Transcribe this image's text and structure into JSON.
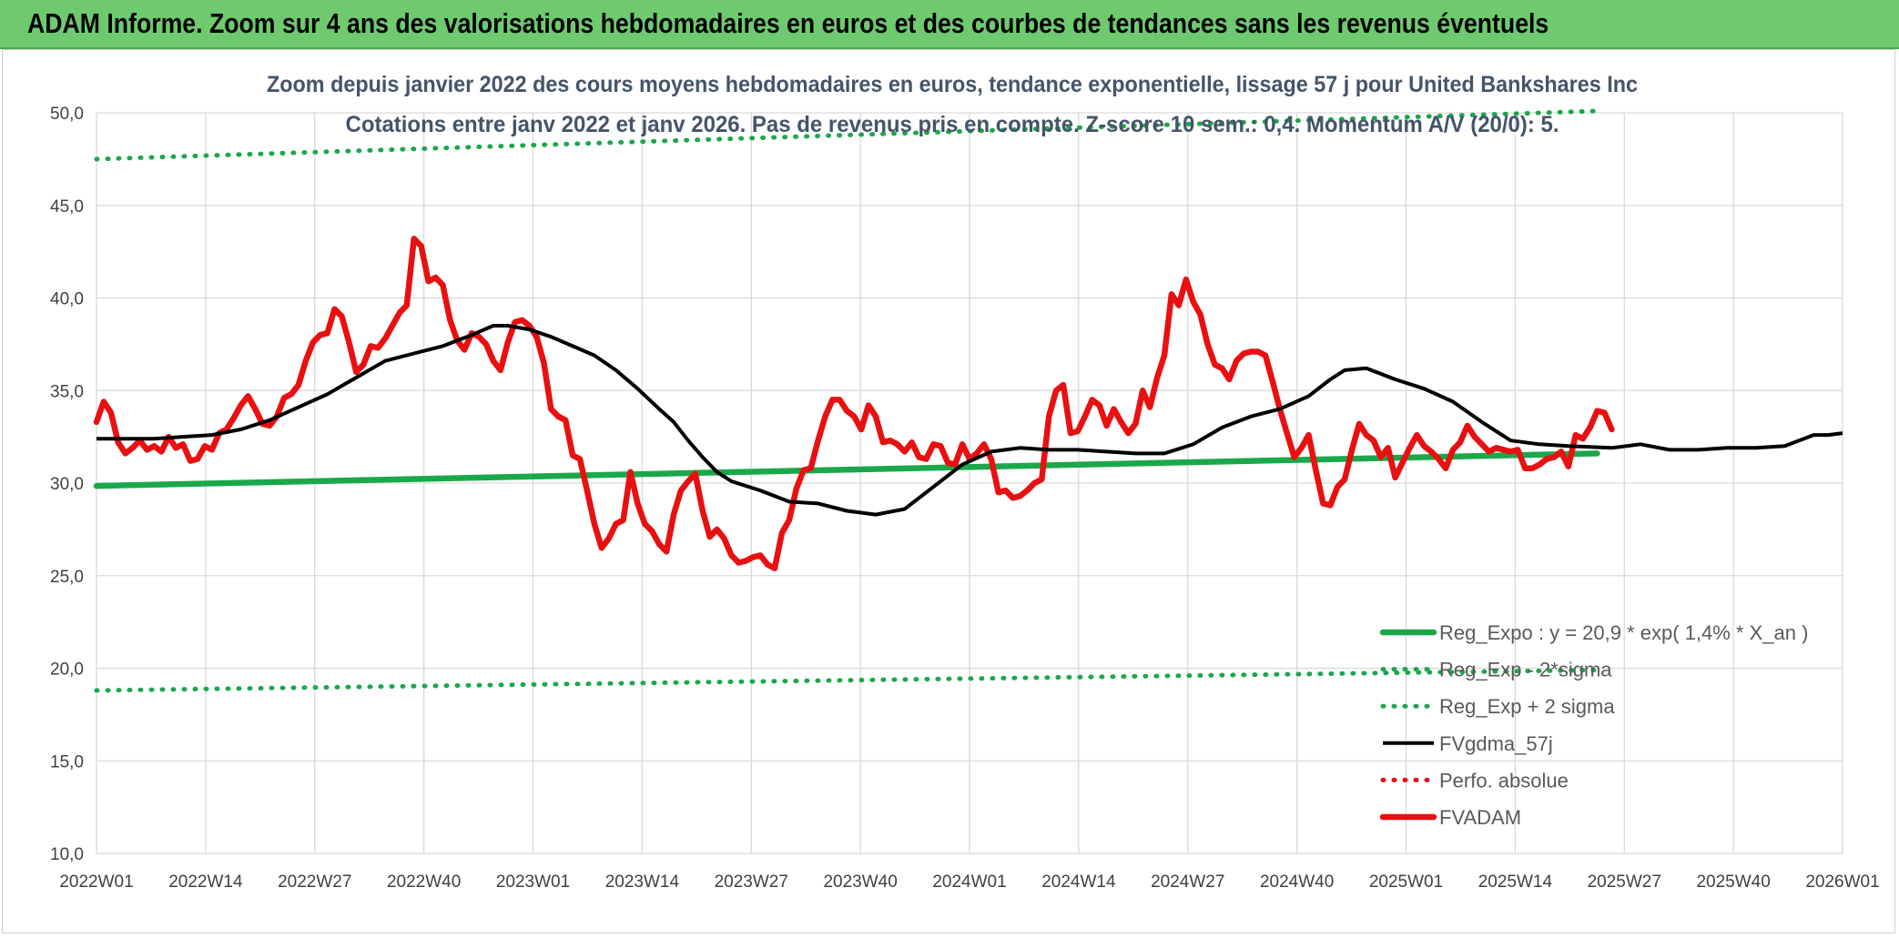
{
  "header": {
    "title": "ADAM Informe. Zoom sur 4 ans des valorisations hebdomadaires en euros et des courbes de tendances sans les revenus éventuels"
  },
  "colors": {
    "banner": "#6fca6f",
    "reg": "#1aa84a",
    "fvadam": "#e81010",
    "fvgdma": "#000000",
    "perfo": "#e81010",
    "title": "#44546a"
  },
  "chart_data": {
    "type": "line",
    "title": "Zoom depuis janvier 2022 des cours moyens hebdomadaires en euros, tendance exponentielle, lissage 57 j pour United Bankshares Inc",
    "subtitle": "Cotations entre janv 2022 et janv 2026. Pas de revenus pris en compte. Z-score 10 sem.: 0,4. Momentum A/V (20/0): 5.",
    "xlabel": "",
    "ylabel": "",
    "ylim": [
      10,
      50
    ],
    "grid": true,
    "legend_position": "bottom-right",
    "y_ticks": [
      "10,0",
      "15,0",
      "20,0",
      "25,0",
      "30,0",
      "35,0",
      "40,0",
      "45,0",
      "50,0"
    ],
    "x_ticks": [
      "2022W01",
      "2022W14",
      "2022W27",
      "2022W40",
      "2023W01",
      "2023W14",
      "2023W27",
      "2023W40",
      "2024W01",
      "2024W14",
      "2024W27",
      "2024W40",
      "2025W01",
      "2025W14",
      "2025W27",
      "2025W40",
      "2026W01"
    ],
    "series": [
      {
        "name": "Reg_Expo : y = 20,9 * exp( 1,4% *  X_an )",
        "style": "solid-thick",
        "color": "#1aa84a",
        "points": [
          [
            0,
            29.85
          ],
          [
            208,
            31.6
          ]
        ]
      },
      {
        "name": "Reg_Exp - 2*sigma",
        "style": "dotted",
        "color": "#1aa84a",
        "points": [
          [
            0,
            18.8
          ],
          [
            208,
            19.9
          ]
        ]
      },
      {
        "name": "Reg_Exp + 2 sigma",
        "style": "dotted",
        "color": "#1aa84a",
        "points": [
          [
            0,
            47.5
          ],
          [
            208,
            50.1
          ]
        ]
      },
      {
        "name": "FVgdma_57j",
        "style": "solid",
        "color": "#000000",
        "points": [
          [
            0,
            32.4
          ],
          [
            4,
            32.4
          ],
          [
            8,
            32.4
          ],
          [
            12,
            32.5
          ],
          [
            16,
            32.6
          ],
          [
            20,
            32.9
          ],
          [
            24,
            33.4
          ],
          [
            28,
            34.1
          ],
          [
            32,
            34.8
          ],
          [
            36,
            35.7
          ],
          [
            40,
            36.6
          ],
          [
            44,
            37.0
          ],
          [
            48,
            37.4
          ],
          [
            52,
            38.0
          ],
          [
            55,
            38.5
          ],
          [
            57,
            38.5
          ],
          [
            60,
            38.3
          ],
          [
            63,
            37.9
          ],
          [
            66,
            37.4
          ],
          [
            69,
            36.9
          ],
          [
            72,
            36.1
          ],
          [
            75,
            35.1
          ],
          [
            78,
            34.0
          ],
          [
            80,
            33.3
          ],
          [
            82,
            32.3
          ],
          [
            84,
            31.4
          ],
          [
            86,
            30.6
          ],
          [
            88,
            30.1
          ],
          [
            92,
            29.6
          ],
          [
            96,
            29.0
          ],
          [
            100,
            28.9
          ],
          [
            104,
            28.5
          ],
          [
            108,
            28.3
          ],
          [
            112,
            28.6
          ],
          [
            114,
            29.2
          ],
          [
            116,
            29.8
          ],
          [
            120,
            31.0
          ],
          [
            124,
            31.7
          ],
          [
            128,
            31.9
          ],
          [
            132,
            31.8
          ],
          [
            136,
            31.8
          ],
          [
            140,
            31.7
          ],
          [
            144,
            31.6
          ],
          [
            148,
            31.6
          ],
          [
            152,
            32.1
          ],
          [
            156,
            33.0
          ],
          [
            160,
            33.6
          ],
          [
            164,
            34.0
          ],
          [
            168,
            34.7
          ],
          [
            171,
            35.6
          ],
          [
            173,
            36.1
          ],
          [
            176,
            36.2
          ],
          [
            180,
            35.6
          ],
          [
            184,
            35.1
          ],
          [
            188,
            34.4
          ],
          [
            192,
            33.3
          ],
          [
            196,
            32.3
          ],
          [
            200,
            32.1
          ],
          [
            204,
            32.0
          ],
          [
            210,
            31.9
          ],
          [
            214,
            32.1
          ],
          [
            218,
            31.8
          ],
          [
            222,
            31.8
          ],
          [
            226,
            31.9
          ],
          [
            230,
            31.9
          ],
          [
            234,
            32.0
          ],
          [
            238,
            32.6
          ],
          [
            240,
            32.6
          ],
          [
            242,
            32.7
          ]
        ]
      },
      {
        "name": "Perfo. absolue",
        "style": "dotted",
        "color": "#e81010",
        "points": []
      },
      {
        "name": "FVADAM",
        "style": "solid-thick",
        "color": "#e81010",
        "points": [
          [
            0,
            33.3
          ],
          [
            1,
            34.4
          ],
          [
            2,
            33.8
          ],
          [
            3,
            32.2
          ],
          [
            4,
            31.6
          ],
          [
            5,
            31.9
          ],
          [
            6,
            32.3
          ],
          [
            7,
            31.8
          ],
          [
            8,
            32.0
          ],
          [
            9,
            31.7
          ],
          [
            10,
            32.5
          ],
          [
            11,
            31.9
          ],
          [
            12,
            32.1
          ],
          [
            13,
            31.2
          ],
          [
            14,
            31.3
          ],
          [
            15,
            32.0
          ],
          [
            16,
            31.8
          ],
          [
            17,
            32.7
          ],
          [
            18,
            32.9
          ],
          [
            19,
            33.5
          ],
          [
            20,
            34.2
          ],
          [
            21,
            34.7
          ],
          [
            22,
            34.0
          ],
          [
            23,
            33.2
          ],
          [
            24,
            33.1
          ],
          [
            25,
            33.6
          ],
          [
            26,
            34.6
          ],
          [
            27,
            34.8
          ],
          [
            28,
            35.3
          ],
          [
            29,
            36.6
          ],
          [
            30,
            37.6
          ],
          [
            31,
            38.0
          ],
          [
            32,
            38.1
          ],
          [
            33,
            39.4
          ],
          [
            34,
            39.0
          ],
          [
            35,
            37.6
          ],
          [
            36,
            36.0
          ],
          [
            37,
            36.4
          ],
          [
            38,
            37.4
          ],
          [
            39,
            37.3
          ],
          [
            40,
            37.8
          ],
          [
            41,
            38.5
          ],
          [
            42,
            39.2
          ],
          [
            43,
            39.6
          ],
          [
            44,
            43.2
          ],
          [
            45,
            42.8
          ],
          [
            46,
            40.9
          ],
          [
            47,
            41.1
          ],
          [
            48,
            40.7
          ],
          [
            49,
            38.8
          ],
          [
            50,
            37.7
          ],
          [
            51,
            37.2
          ],
          [
            52,
            38.1
          ],
          [
            53,
            37.9
          ],
          [
            54,
            37.5
          ],
          [
            55,
            36.6
          ],
          [
            56,
            36.1
          ],
          [
            57,
            37.6
          ],
          [
            58,
            38.7
          ],
          [
            59,
            38.8
          ],
          [
            60,
            38.5
          ],
          [
            61,
            37.9
          ],
          [
            62,
            36.5
          ],
          [
            63,
            34.0
          ],
          [
            64,
            33.6
          ],
          [
            65,
            33.4
          ],
          [
            66,
            31.5
          ],
          [
            67,
            31.3
          ],
          [
            68,
            29.6
          ],
          [
            69,
            27.8
          ],
          [
            70,
            26.5
          ],
          [
            71,
            27.0
          ],
          [
            72,
            27.8
          ],
          [
            73,
            28.0
          ],
          [
            74,
            30.6
          ],
          [
            75,
            28.9
          ],
          [
            76,
            27.8
          ],
          [
            77,
            27.4
          ],
          [
            78,
            26.7
          ],
          [
            79,
            26.3
          ],
          [
            80,
            28.3
          ],
          [
            81,
            29.6
          ],
          [
            82,
            30.1
          ],
          [
            83,
            30.5
          ],
          [
            84,
            28.5
          ],
          [
            85,
            27.1
          ],
          [
            86,
            27.5
          ],
          [
            87,
            27.0
          ],
          [
            88,
            26.1
          ],
          [
            89,
            25.7
          ],
          [
            90,
            25.8
          ],
          [
            91,
            26.0
          ],
          [
            92,
            26.1
          ],
          [
            93,
            25.6
          ],
          [
            94,
            25.4
          ],
          [
            95,
            27.3
          ],
          [
            96,
            28.0
          ],
          [
            97,
            29.7
          ],
          [
            98,
            30.7
          ],
          [
            99,
            30.8
          ],
          [
            100,
            32.3
          ],
          [
            101,
            33.6
          ],
          [
            102,
            34.5
          ],
          [
            103,
            34.5
          ],
          [
            104,
            33.9
          ],
          [
            105,
            33.6
          ],
          [
            106,
            32.9
          ],
          [
            107,
            34.2
          ],
          [
            108,
            33.6
          ],
          [
            109,
            32.2
          ],
          [
            110,
            32.3
          ],
          [
            111,
            32.1
          ],
          [
            112,
            31.7
          ],
          [
            113,
            32.2
          ],
          [
            114,
            31.4
          ],
          [
            115,
            31.3
          ],
          [
            116,
            32.1
          ],
          [
            117,
            32.0
          ],
          [
            118,
            31.1
          ],
          [
            119,
            31.0
          ],
          [
            120,
            32.1
          ],
          [
            121,
            31.3
          ],
          [
            122,
            31.6
          ],
          [
            123,
            32.1
          ],
          [
            124,
            31.3
          ],
          [
            125,
            29.5
          ],
          [
            126,
            29.6
          ],
          [
            127,
            29.2
          ],
          [
            128,
            29.3
          ],
          [
            129,
            29.6
          ],
          [
            130,
            30.0
          ],
          [
            131,
            30.2
          ],
          [
            132,
            33.6
          ],
          [
            133,
            35.0
          ],
          [
            134,
            35.3
          ],
          [
            135,
            32.7
          ],
          [
            136,
            32.8
          ],
          [
            137,
            33.6
          ],
          [
            138,
            34.5
          ],
          [
            139,
            34.2
          ],
          [
            140,
            33.1
          ],
          [
            141,
            34.0
          ],
          [
            142,
            33.3
          ],
          [
            143,
            32.7
          ],
          [
            144,
            33.2
          ],
          [
            145,
            35.0
          ],
          [
            146,
            34.1
          ],
          [
            147,
            35.7
          ],
          [
            148,
            36.9
          ],
          [
            149,
            40.2
          ],
          [
            150,
            39.6
          ],
          [
            151,
            41.0
          ],
          [
            152,
            39.8
          ],
          [
            153,
            39.1
          ],
          [
            154,
            37.5
          ],
          [
            155,
            36.4
          ],
          [
            156,
            36.2
          ],
          [
            157,
            35.6
          ],
          [
            158,
            36.6
          ],
          [
            159,
            37.0
          ],
          [
            160,
            37.1
          ],
          [
            161,
            37.1
          ],
          [
            162,
            36.9
          ],
          [
            163,
            35.5
          ],
          [
            164,
            34.0
          ],
          [
            165,
            32.7
          ],
          [
            166,
            31.4
          ],
          [
            167,
            31.9
          ],
          [
            168,
            32.6
          ],
          [
            169,
            30.7
          ],
          [
            170,
            28.9
          ],
          [
            171,
            28.8
          ],
          [
            172,
            29.8
          ],
          [
            173,
            30.2
          ],
          [
            174,
            31.8
          ],
          [
            175,
            33.2
          ],
          [
            176,
            32.6
          ],
          [
            177,
            32.3
          ],
          [
            178,
            31.4
          ],
          [
            179,
            31.9
          ],
          [
            180,
            30.3
          ],
          [
            181,
            31.1
          ],
          [
            182,
            31.9
          ],
          [
            183,
            32.6
          ],
          [
            184,
            32.0
          ],
          [
            185,
            31.7
          ],
          [
            186,
            31.3
          ],
          [
            187,
            30.8
          ],
          [
            188,
            31.8
          ],
          [
            189,
            32.2
          ],
          [
            190,
            33.1
          ],
          [
            191,
            32.5
          ],
          [
            192,
            32.1
          ],
          [
            193,
            31.7
          ],
          [
            194,
            31.9
          ],
          [
            195,
            31.8
          ],
          [
            196,
            31.7
          ],
          [
            197,
            31.8
          ],
          [
            198,
            30.8
          ],
          [
            199,
            30.8
          ],
          [
            200,
            31.0
          ],
          [
            201,
            31.3
          ],
          [
            202,
            31.4
          ],
          [
            203,
            31.7
          ],
          [
            204,
            30.9
          ],
          [
            205,
            32.6
          ],
          [
            206,
            32.4
          ],
          [
            207,
            33.0
          ],
          [
            208,
            33.9
          ],
          [
            209,
            33.8
          ],
          [
            210,
            32.9
          ]
        ]
      }
    ]
  }
}
